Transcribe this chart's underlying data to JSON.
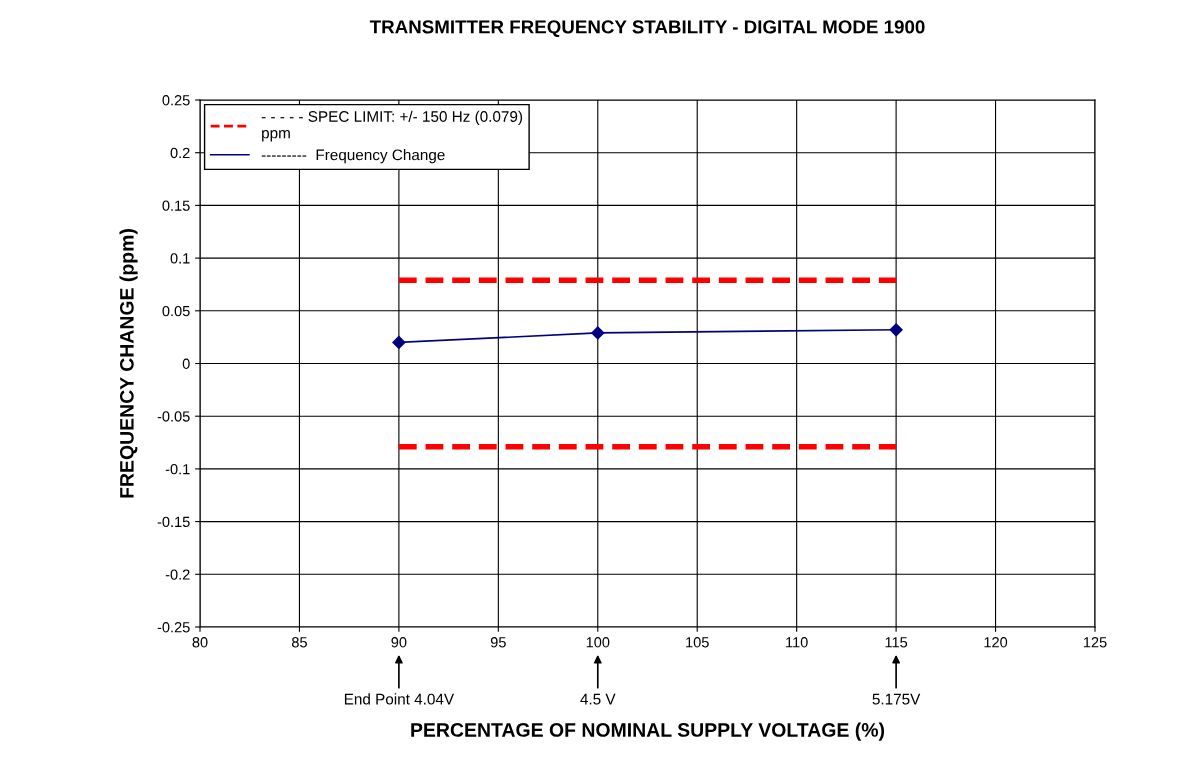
{
  "chart_data": {
    "type": "line",
    "title": "TRANSMITTER FREQUENCY STABILITY - DIGITAL MODE 1900",
    "xlabel": "PERCENTAGE OF NOMINAL SUPPLY VOLTAGE (%)",
    "ylabel": "FREQUENCY CHANGE (ppm)",
    "series": [
      {
        "name": "- - - - - SPEC LIMIT: +/- 150 Hz (0.079)\nppm",
        "color": "#ff0000",
        "x": [
          90,
          115
        ],
        "values": [
          0.079,
          0.079
        ],
        "line_style": "dashed",
        "marker": "none"
      },
      {
        "color": "#ff0000",
        "x": [
          90,
          115
        ],
        "values": [
          -0.079,
          -0.079
        ],
        "line_style": "dashed",
        "marker": "none"
      },
      {
        "name": "---------  Frequency Change",
        "color": "#000080",
        "x": [
          90,
          100,
          115
        ],
        "values": [
          0.02,
          0.029,
          0.032
        ],
        "line_style": "solid",
        "marker": "diamond"
      }
    ],
    "xlim": [
      80,
      125
    ],
    "xticks": [
      80,
      85,
      90,
      95,
      100,
      105,
      110,
      115,
      120,
      125
    ],
    "ylim": [
      -0.25,
      0.25
    ],
    "yticks": [
      -0.25,
      -0.2,
      -0.15,
      -0.1,
      -0.05,
      0,
      0.05,
      0.1,
      0.15,
      0.2,
      0.25
    ],
    "annotations": [
      "End Point 4.04V",
      "4.5 V",
      "5.175V"
    ],
    "grid": true,
    "legend": "top left"
  }
}
